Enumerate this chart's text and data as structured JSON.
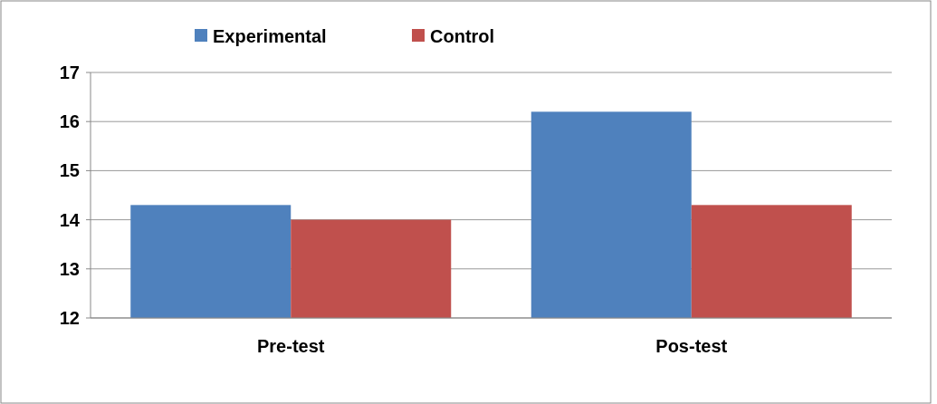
{
  "chart_data": {
    "type": "bar",
    "categories": [
      "Pre-test",
      "Pos-test"
    ],
    "series": [
      {
        "name": "Experimental",
        "color": "#4f81bd",
        "values": [
          14.3,
          16.2
        ]
      },
      {
        "name": "Control",
        "color": "#c0504d",
        "values": [
          14.0,
          14.3
        ]
      }
    ],
    "ylim": [
      12,
      17
    ],
    "yticks": [
      12,
      13,
      14,
      15,
      16,
      17
    ],
    "grid": "y",
    "legend": "top"
  }
}
